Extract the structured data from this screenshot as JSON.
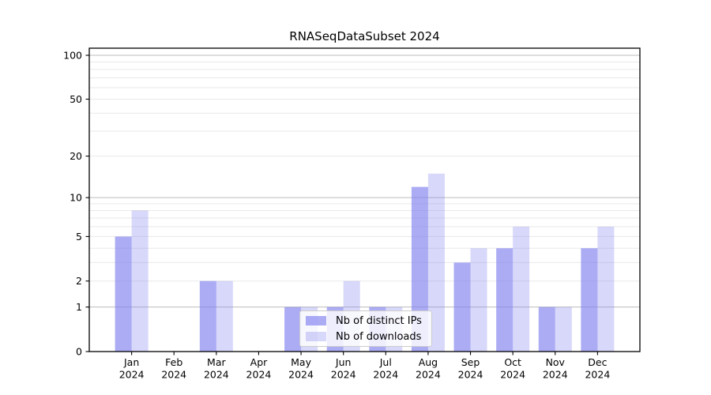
{
  "chart_data": {
    "type": "bar",
    "title": "RNASeqDataSubset 2024",
    "categories": [
      "Jan",
      "Feb",
      "Mar",
      "Apr",
      "May",
      "Jun",
      "Jul",
      "Aug",
      "Sep",
      "Oct",
      "Nov",
      "Dec"
    ],
    "category_year": "2024",
    "series": [
      {
        "name": "Nb of distinct IPs",
        "color": "rgba(127,127,240,0.65)",
        "values": [
          5,
          0,
          2,
          0,
          1,
          1,
          1,
          12,
          3,
          4,
          1,
          4
        ]
      },
      {
        "name": "Nb of downloads",
        "color": "rgba(127,127,240,0.30)",
        "values": [
          8,
          0,
          2,
          0,
          1,
          2,
          1,
          15,
          4,
          6,
          1,
          6
        ]
      }
    ],
    "xlabel": "",
    "ylabel": "",
    "y_axis": {
      "scale": "log10(value+1)",
      "tick_values": [
        0,
        1,
        2,
        5,
        10,
        20,
        50,
        100
      ],
      "tick_labels": [
        "0",
        "1",
        "2",
        "5",
        "10",
        "20",
        "50",
        "100"
      ],
      "major_gridlines": [
        1,
        10,
        100
      ],
      "minor_gridlines": [
        2,
        3,
        4,
        5,
        6,
        7,
        8,
        9,
        20,
        30,
        40,
        50,
        60,
        70,
        80,
        90
      ],
      "ylim": [
        0,
        112
      ]
    },
    "legend_position": "lower center",
    "colors": {
      "major_grid": "#bdbdbd",
      "minor_grid": "#e9e9e9",
      "spine": "#000000",
      "text": "#000000"
    }
  }
}
